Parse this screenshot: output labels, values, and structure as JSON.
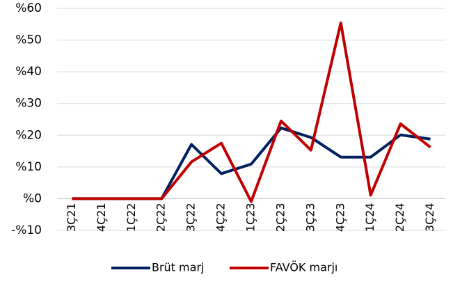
{
  "chart_data": {
    "type": "line",
    "categories": [
      "3Ç21",
      "4Ç21",
      "1Ç22",
      "2Ç22",
      "3Ç22",
      "4Ç22",
      "1Ç23",
      "2Ç23",
      "3Ç23",
      "4Ç23",
      "1Ç24",
      "2Ç24",
      "3Ç24"
    ],
    "series": [
      {
        "name": "Brüt marj",
        "color": "#002060",
        "values": [
          0,
          0,
          0,
          0,
          17.1,
          7.9,
          10.9,
          22.3,
          19.3,
          13.1,
          13.1,
          20.1,
          18.8
        ]
      },
      {
        "name": "FAVÖK marjı",
        "color": "#c00000",
        "values": [
          0,
          0,
          0,
          0,
          11.6,
          17.5,
          -0.9,
          24.5,
          15.3,
          55.4,
          1.1,
          23.6,
          16.2
        ]
      }
    ],
    "ylim": [
      -10,
      60
    ],
    "yticks": [
      {
        "value": -10,
        "label": "-%10"
      },
      {
        "value": 0,
        "label": "%0"
      },
      {
        "value": 10,
        "label": "%10"
      },
      {
        "value": 20,
        "label": "%20"
      },
      {
        "value": 30,
        "label": "%30"
      },
      {
        "value": 40,
        "label": "%40"
      },
      {
        "value": 50,
        "label": "%50"
      },
      {
        "value": 60,
        "label": "%60"
      }
    ],
    "grid": true,
    "legend": "bottom"
  }
}
